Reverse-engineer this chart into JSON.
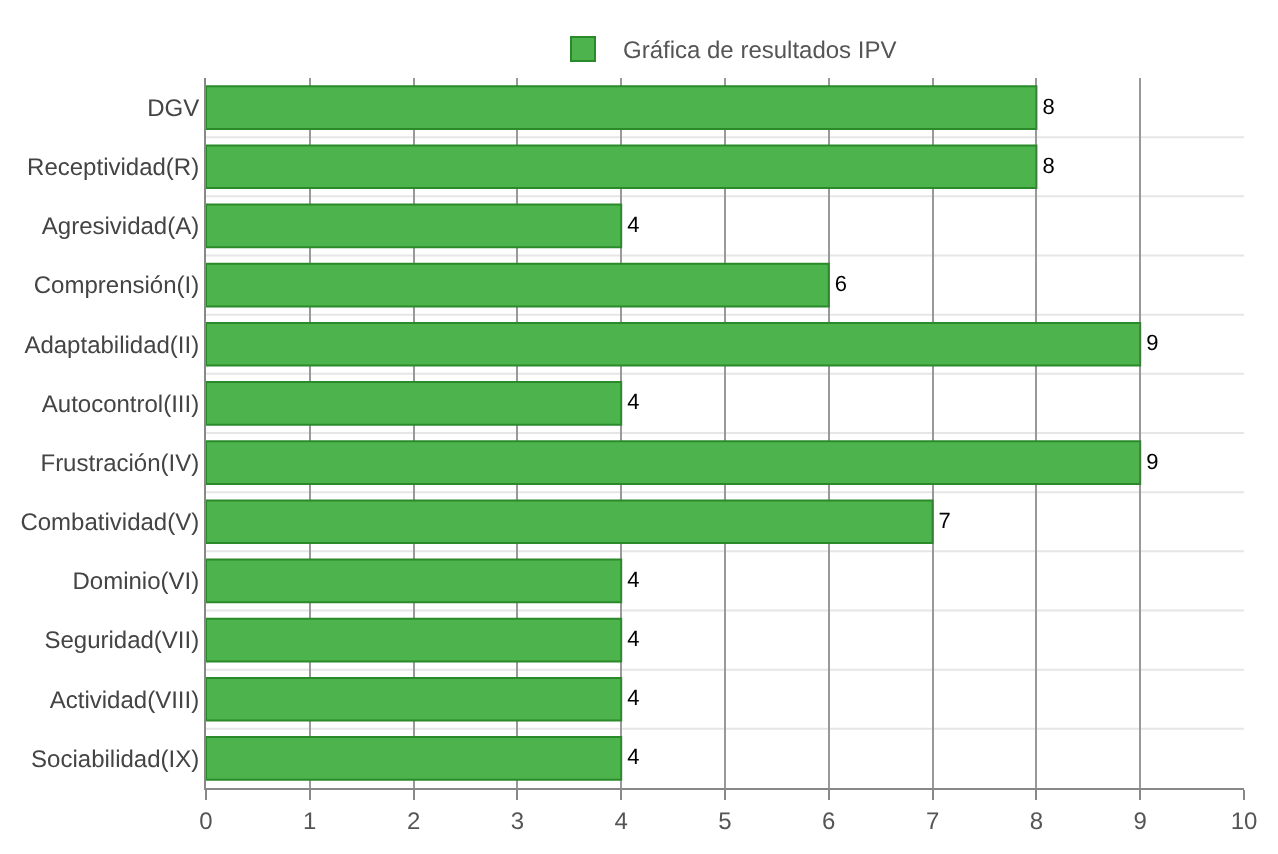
{
  "chart_data": {
    "type": "bar",
    "orientation": "horizontal",
    "categories": [
      "DGV",
      "Receptividad(R)",
      "Agresividad(A)",
      "Comprensión(I)",
      "Adaptabilidad(II)",
      "Autocontrol(III)",
      "Frustración(IV)",
      "Combatividad(V)",
      "Dominio(VI)",
      "Seguridad(VII)",
      "Actividad(VIII)",
      "Sociabilidad(IX)"
    ],
    "series": [
      {
        "name": "Gráfica de resultados IPV",
        "color": "#4db34d",
        "values": [
          8,
          8,
          4,
          6,
          9,
          4,
          9,
          7,
          4,
          4,
          4,
          4
        ]
      }
    ],
    "xlim": [
      0,
      10
    ],
    "xticks": [
      0,
      1,
      2,
      3,
      4,
      5,
      6,
      7,
      8,
      9,
      10
    ],
    "grid": true,
    "legend": "top",
    "data_labels": true
  }
}
